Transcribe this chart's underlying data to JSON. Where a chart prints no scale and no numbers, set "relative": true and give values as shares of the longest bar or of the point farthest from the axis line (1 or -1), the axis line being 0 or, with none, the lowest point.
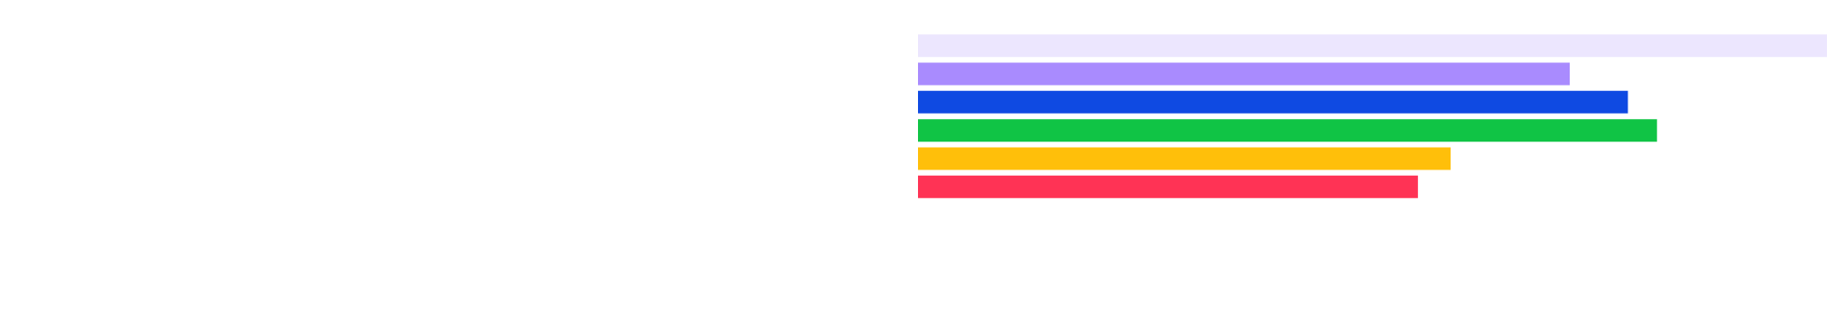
{
  "chart_data": {
    "type": "bar",
    "orientation": "horizontal",
    "relative": true,
    "categories": [
      null,
      null,
      null,
      null,
      null,
      null
    ],
    "values": [
      1,
      0.717,
      0.781,
      0.813,
      0.586,
      0.55
    ],
    "colors": [
      "#ece6fe",
      "#a98bfe",
      "#0f4ae2",
      "#10c445",
      "#ffbf0a",
      "#ff3355"
    ],
    "legend": false
  }
}
